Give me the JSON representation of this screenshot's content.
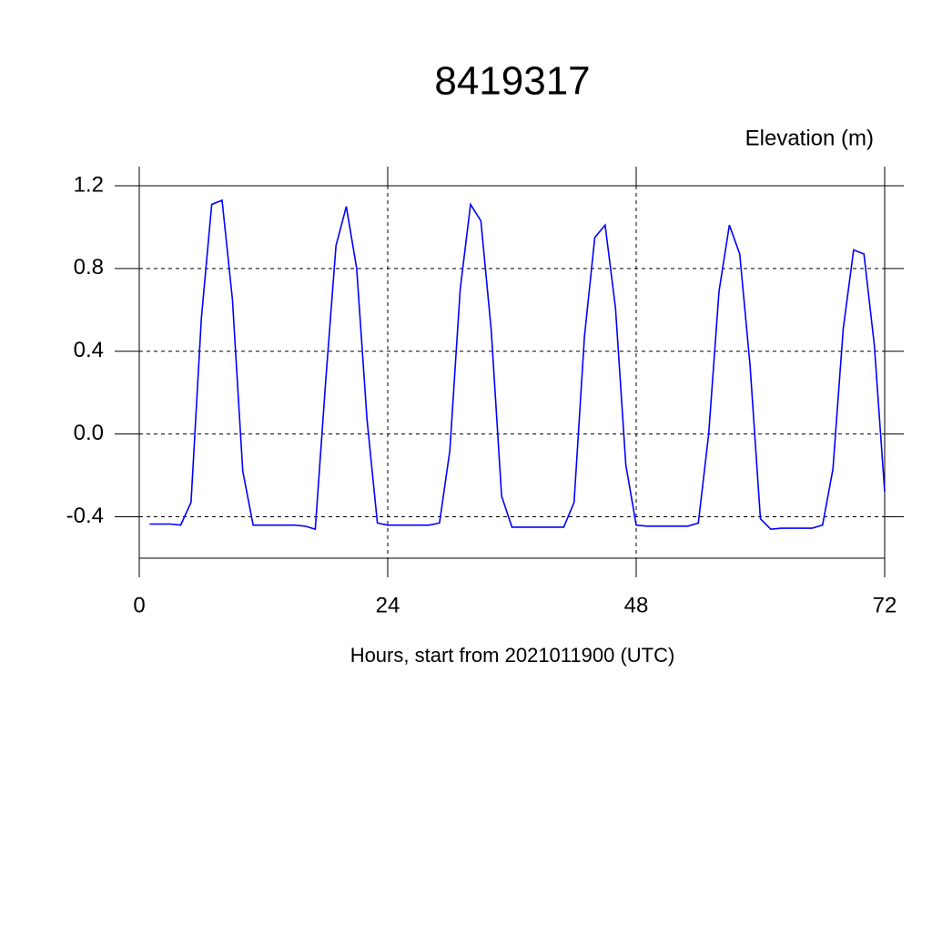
{
  "chart_data": {
    "type": "line",
    "title": "8419317",
    "y_axis_label": "Elevation (m)",
    "x_axis_label": "Hours, start from 2021011900 (UTC)",
    "x": [
      1,
      2,
      3,
      4,
      5,
      6,
      7,
      8,
      9,
      10,
      11,
      12,
      13,
      14,
      15,
      16,
      17,
      18,
      19,
      20,
      21,
      22,
      23,
      24,
      25,
      26,
      27,
      28,
      29,
      30,
      31,
      32,
      33,
      34,
      35,
      36,
      37,
      38,
      39,
      40,
      41,
      42,
      43,
      44,
      45,
      46,
      47,
      48,
      49,
      50,
      51,
      52,
      53,
      54,
      55,
      56,
      57,
      58,
      59,
      60,
      61,
      62,
      63,
      64,
      65,
      66,
      67,
      68,
      69,
      70,
      71,
      72
    ],
    "series": [
      {
        "name": "Elevation",
        "color": "#0000ff",
        "values": [
          -0.435,
          -0.435,
          -0.435,
          -0.44,
          -0.33,
          0.56,
          1.11,
          1.13,
          0.65,
          -0.18,
          -0.44,
          -0.44,
          -0.44,
          -0.44,
          -0.44,
          -0.445,
          -0.46,
          0.25,
          0.91,
          1.1,
          0.8,
          0.07,
          -0.43,
          -0.44,
          -0.44,
          -0.44,
          -0.44,
          -0.44,
          -0.43,
          -0.08,
          0.7,
          1.11,
          1.03,
          0.5,
          -0.3,
          -0.45,
          -0.45,
          -0.45,
          -0.45,
          -0.45,
          -0.45,
          -0.33,
          0.47,
          0.95,
          1.01,
          0.61,
          -0.15,
          -0.44,
          -0.445,
          -0.445,
          -0.445,
          -0.445,
          -0.445,
          -0.43,
          0.0,
          0.69,
          1.01,
          0.87,
          0.33,
          -0.41,
          -0.46,
          -0.455,
          -0.455,
          -0.455,
          -0.455,
          -0.44,
          -0.17,
          0.51,
          0.89,
          0.87,
          0.43,
          -0.28
        ]
      }
    ],
    "xlim": [
      0,
      72
    ],
    "xticks": [
      0,
      24,
      48,
      72
    ],
    "ylim": [
      -0.6,
      1.2
    ],
    "yticks": [
      -0.4,
      {
        "value": 0,
        "label": "0.0"
      },
      0.4,
      0.8,
      1.2
    ],
    "grid": true
  }
}
